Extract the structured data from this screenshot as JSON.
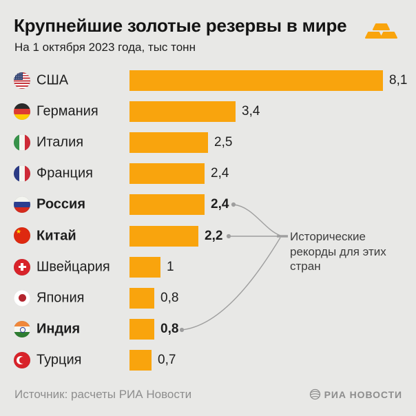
{
  "header": {
    "title": "Крупнейшие золотые резервы в мире",
    "subtitle": "На 1 октября 2023 года, тыс тонн"
  },
  "chart_data": {
    "type": "bar",
    "orientation": "horizontal",
    "title": "Крупнейшие золотые резервы в мире",
    "subtitle": "На 1 октября 2023 года, тыс тонн",
    "unit": "тыс тонн",
    "xlim": [
      0,
      8.1
    ],
    "grid": false,
    "categories": [
      "США",
      "Германия",
      "Италия",
      "Франция",
      "Россия",
      "Китай",
      "Швейцария",
      "Япония",
      "Индия",
      "Турция"
    ],
    "values": [
      8.1,
      3.4,
      2.5,
      2.4,
      2.4,
      2.2,
      1,
      0.8,
      0.8,
      0.7
    ],
    "value_labels": [
      "8,1",
      "3,4",
      "2,5",
      "2,4",
      "2,4",
      "2,2",
      "1",
      "0,8",
      "0,8",
      "0,7"
    ],
    "flags": [
      "usa",
      "germany",
      "italy",
      "france",
      "russia",
      "china",
      "switzerland",
      "japan",
      "india",
      "turkey"
    ],
    "highlighted": [
      false,
      false,
      false,
      false,
      true,
      true,
      false,
      false,
      true,
      false
    ],
    "bar_color": "#F9A40D"
  },
  "annotation": {
    "text": "Исторические рекорды для этих стран",
    "targets": [
      "Россия",
      "Китай",
      "Индия"
    ]
  },
  "footer": {
    "source": "Источник: расчеты РИА Новости",
    "brand": "РИА НОВОСТИ"
  },
  "colors": {
    "background": "#E8E8E6",
    "bar": "#F9A40D",
    "text": "#1C1C1C",
    "muted": "#8D8D8D",
    "annotation_line": "#9E9E9E"
  }
}
